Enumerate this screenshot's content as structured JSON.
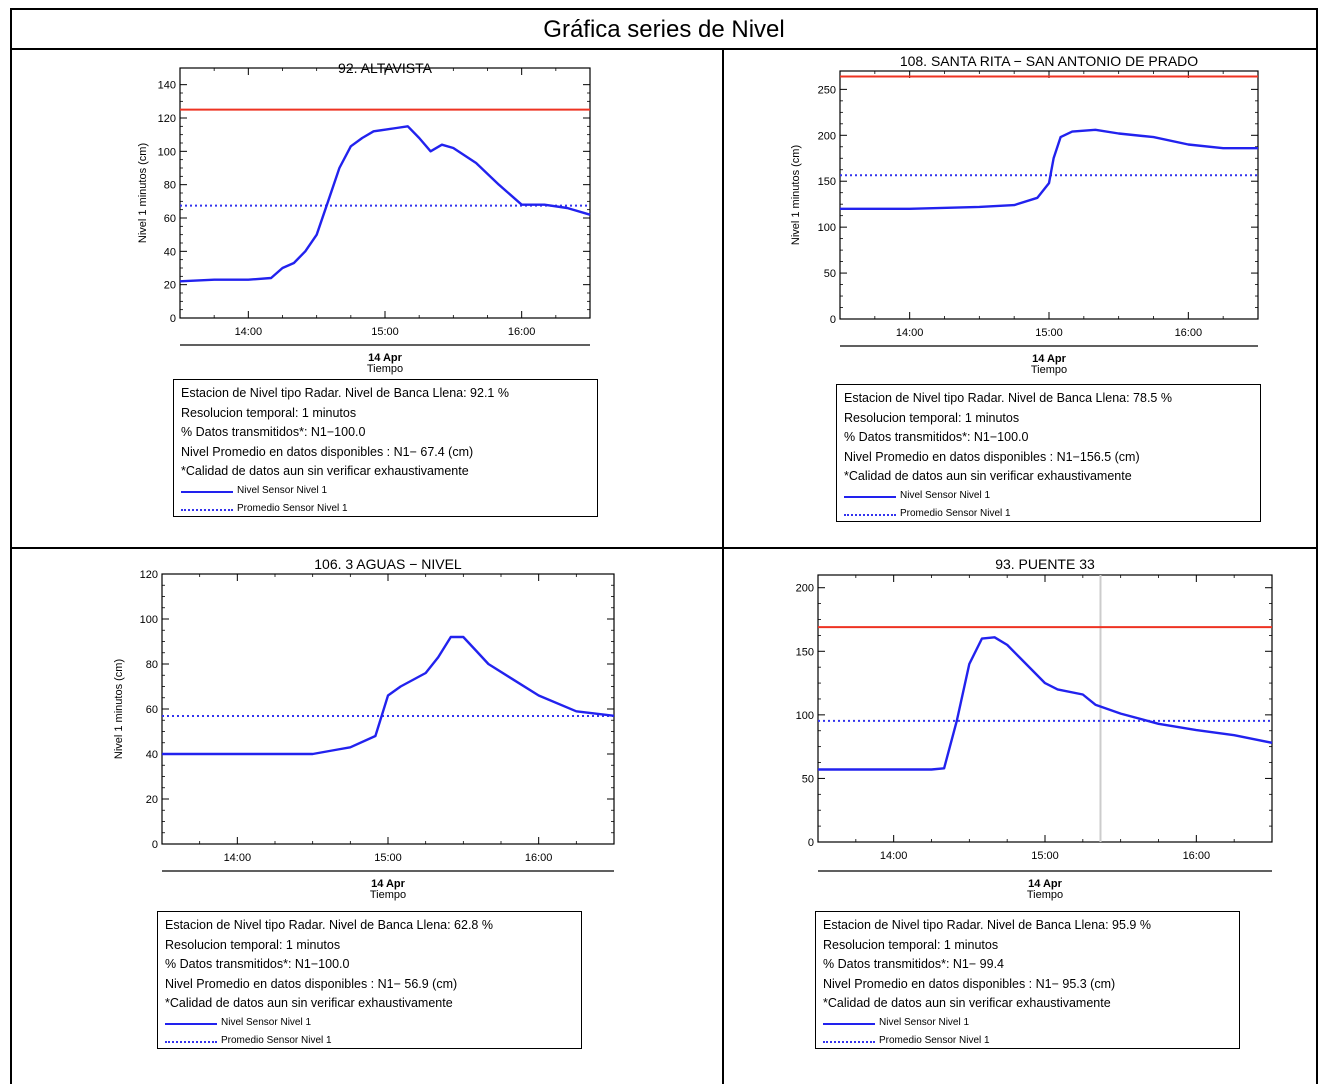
{
  "page": {
    "title": "Gráfica series de Nivel"
  },
  "colors": {
    "series": "#2222ee",
    "mean": "#3333ee",
    "threshold": "#ee3322",
    "gap": "#cccccc",
    "frame": "#000000"
  },
  "chart_data": [
    {
      "type": "line",
      "title": "92. ALTAVISTA",
      "ylabel": "Nivel 1 minutos (cm)",
      "xlabel": "Tiempo",
      "date_label": "14 Apr",
      "xlim": [
        "13:30",
        "16:30"
      ],
      "xticks": [
        "14:00",
        "15:00",
        "16:00"
      ],
      "ylim": [
        0,
        150
      ],
      "yticks": [
        0,
        20,
        40,
        60,
        80,
        100,
        120,
        140
      ],
      "threshold": 125,
      "mean": 67.4,
      "series": [
        {
          "name": "Nivel Sensor Nivel 1",
          "x": [
            "13:30",
            "13:45",
            "14:00",
            "14:10",
            "14:15",
            "14:20",
            "14:25",
            "14:30",
            "14:35",
            "14:40",
            "14:45",
            "14:50",
            "14:55",
            "15:00",
            "15:05",
            "15:10",
            "15:15",
            "15:20",
            "15:25",
            "15:30",
            "15:40",
            "15:50",
            "15:55",
            "16:00",
            "16:10",
            "16:20",
            "16:30"
          ],
          "y": [
            22,
            23,
            23,
            24,
            30,
            33,
            40,
            50,
            70,
            90,
            103,
            108,
            112,
            113,
            114,
            115,
            108,
            100,
            104,
            102,
            93,
            80,
            74,
            68,
            68,
            66,
            62
          ]
        }
      ],
      "info": [
        "Estacion de Nivel tipo Radar. Nivel de Banca Llena: 92.1 %",
        "Resolucion temporal: 1 minutos",
        "% Datos transmitidos*: N1−100.0",
        "Nivel Promedio en datos disponibles : N1− 67.4 (cm)",
        "*Calidad de datos aun sin verificar exhaustivamente"
      ],
      "legend": [
        "Nivel Sensor Nivel 1",
        "Promedio Sensor Nivel 1"
      ]
    },
    {
      "type": "line",
      "title": "108. SANTA RITA − SAN ANTONIO DE PRADO",
      "ylabel": "Nivel 1 minutos (cm)",
      "xlabel": "Tiempo",
      "date_label": "14 Apr",
      "xlim": [
        "13:30",
        "16:30"
      ],
      "xticks": [
        "14:00",
        "15:00",
        "16:00"
      ],
      "ylim": [
        0,
        270
      ],
      "yticks": [
        0,
        50,
        100,
        150,
        200,
        250
      ],
      "threshold": 264,
      "mean": 156.5,
      "series": [
        {
          "name": "Nivel Sensor Nivel 1",
          "x": [
            "13:30",
            "14:00",
            "14:30",
            "14:45",
            "14:55",
            "15:00",
            "15:02",
            "15:05",
            "15:10",
            "15:20",
            "15:30",
            "15:45",
            "16:00",
            "16:15",
            "16:30"
          ],
          "y": [
            120,
            120,
            122,
            124,
            132,
            148,
            175,
            198,
            204,
            206,
            202,
            198,
            190,
            186,
            186
          ]
        }
      ],
      "info": [
        "Estacion de Nivel tipo Radar. Nivel de Banca Llena: 78.5 %",
        "Resolucion temporal: 1 minutos",
        "% Datos transmitidos*: N1−100.0",
        "Nivel Promedio en datos disponibles : N1−156.5 (cm)",
        "*Calidad de datos aun sin verificar exhaustivamente"
      ],
      "legend": [
        "Nivel Sensor Nivel 1",
        "Promedio Sensor Nivel 1"
      ]
    },
    {
      "type": "line",
      "title": "106. 3 AGUAS − NIVEL",
      "ylabel": "Nivel 1 minutos (cm)",
      "xlabel": "Tiempo",
      "date_label": "14 Apr",
      "xlim": [
        "13:30",
        "16:30"
      ],
      "xticks": [
        "14:00",
        "15:00",
        "16:00"
      ],
      "ylim": [
        0,
        120
      ],
      "yticks": [
        0,
        20,
        40,
        60,
        80,
        100,
        120
      ],
      "mean": 56.9,
      "series": [
        {
          "name": "Nivel Sensor Nivel 1",
          "x": [
            "13:30",
            "14:00",
            "14:30",
            "14:40",
            "14:45",
            "14:55",
            "15:00",
            "15:05",
            "15:15",
            "15:20",
            "15:25",
            "15:30",
            "15:35",
            "15:40",
            "15:50",
            "16:00",
            "16:15",
            "16:30"
          ],
          "y": [
            40,
            40,
            40,
            42,
            43,
            48,
            66,
            70,
            76,
            83,
            92,
            92,
            86,
            80,
            73,
            66,
            59,
            57
          ]
        }
      ],
      "info": [
        "Estacion de Nivel tipo Radar. Nivel de Banca Llena: 62.8 %",
        "Resolucion temporal: 1 minutos",
        "% Datos transmitidos*: N1−100.0",
        "Nivel Promedio en datos disponibles : N1− 56.9 (cm)",
        "*Calidad de datos aun sin verificar exhaustivamente"
      ],
      "legend": [
        "Nivel Sensor Nivel 1",
        "Promedio Sensor Nivel 1"
      ]
    },
    {
      "type": "line",
      "title": "93. PUENTE 33",
      "ylabel": "",
      "xlabel": "Tiempo",
      "date_label": "14 Apr",
      "xlim": [
        "13:30",
        "16:30"
      ],
      "xticks": [
        "14:00",
        "15:00",
        "16:00"
      ],
      "ylim": [
        0,
        210
      ],
      "yticks": [
        0,
        50,
        100,
        150,
        200
      ],
      "threshold": 169,
      "mean": 95.3,
      "gap_at": "15:22",
      "series": [
        {
          "name": "Nivel Sensor Nivel 1",
          "x": [
            "13:30",
            "14:00",
            "14:15",
            "14:20",
            "14:25",
            "14:30",
            "14:35",
            "14:40",
            "14:45",
            "14:50",
            "15:00",
            "15:05",
            "15:15",
            "15:20",
            "15:30",
            "15:45",
            "16:00",
            "16:15",
            "16:30"
          ],
          "y": [
            57,
            57,
            57,
            58,
            95,
            140,
            160,
            161,
            155,
            145,
            125,
            120,
            116,
            108,
            101,
            93,
            88,
            84,
            78
          ]
        }
      ],
      "info": [
        "Estacion de Nivel tipo Radar. Nivel de Banca Llena: 95.9 %",
        "Resolucion temporal: 1 minutos",
        "% Datos transmitidos*: N1− 99.4",
        "Nivel Promedio en datos disponibles : N1− 95.3 (cm)",
        "*Calidad de datos aun sin verificar exhaustivamente"
      ],
      "legend": [
        "Nivel Sensor Nivel 1",
        "Promedio Sensor Nivel 1"
      ]
    }
  ]
}
